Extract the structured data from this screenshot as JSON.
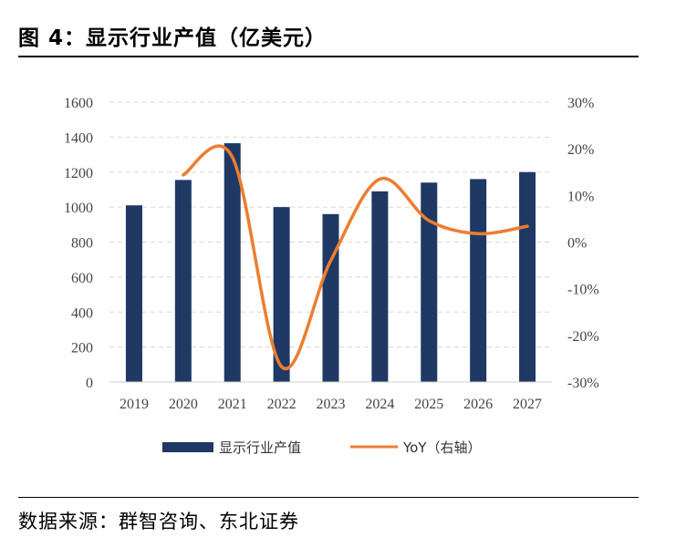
{
  "figure": {
    "title": "图 4：显示行业产值（亿美元）",
    "source": "数据来源：群智咨询、东北证券"
  },
  "colors": {
    "bar": "#1f3864",
    "line": "#ed7d31",
    "grid": "#d9d9d9"
  },
  "chart_data": {
    "type": "bar",
    "title": "显示行业产值（亿美元）",
    "categories": [
      "2019",
      "2020",
      "2021",
      "2022",
      "2023",
      "2024",
      "2025",
      "2026",
      "2027"
    ],
    "series": [
      {
        "name": "显示行业产值",
        "type": "bar",
        "axis": "left",
        "values": [
          1010,
          1155,
          1365,
          1000,
          960,
          1090,
          1140,
          1160,
          1200
        ]
      },
      {
        "name": "YoY（右轴）",
        "type": "line",
        "axis": "right",
        "smooth": true,
        "values": [
          null,
          14.4,
          18.2,
          -26.7,
          -4.0,
          13.5,
          4.6,
          1.8,
          3.4
        ]
      }
    ],
    "left_axis": {
      "ylim": [
        0,
        1600
      ],
      "ticks": [
        "0",
        "200",
        "400",
        "600",
        "800",
        "1000",
        "1200",
        "1400",
        "1600"
      ]
    },
    "right_axis": {
      "ylim": [
        -30,
        30
      ],
      "ticks": [
        "-30%",
        "-20%",
        "-10%",
        "0%",
        "10%",
        "20%",
        "30%"
      ]
    },
    "legend": {
      "position": "bottom",
      "entries": [
        "显示行业产值",
        "YoY（右轴）"
      ]
    },
    "grid": true
  }
}
